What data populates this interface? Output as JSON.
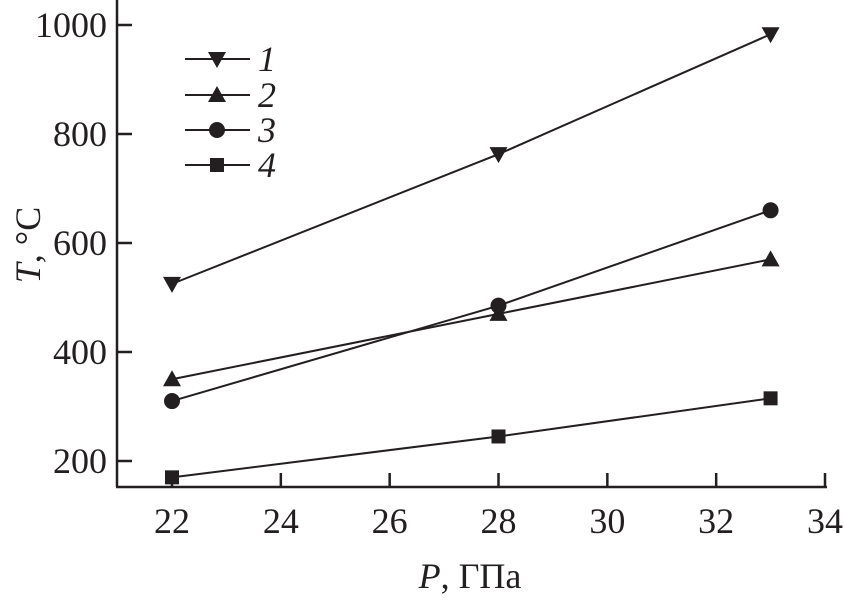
{
  "chart_data": {
    "type": "line",
    "title": "",
    "xlabel_italic": "P",
    "xlabel_rest": ", ГПа",
    "ylabel_italic": "T",
    "ylabel_rest": ", °C",
    "xlim": [
      21,
      34
    ],
    "ylim": [
      152,
      1048
    ],
    "xticks": [
      22,
      24,
      26,
      28,
      30,
      32,
      34
    ],
    "yticks": [
      200,
      400,
      600,
      800,
      1000
    ],
    "grid": false,
    "legend_placement": "top-left",
    "x": [
      22,
      28,
      33
    ],
    "series": [
      {
        "name": "1",
        "marker": "triangle-down",
        "values": [
          525,
          763,
          983
        ]
      },
      {
        "name": "2",
        "marker": "triangle-up",
        "values": [
          350,
          470,
          570
        ]
      },
      {
        "name": "3",
        "marker": "circle",
        "values": [
          310,
          485,
          660
        ]
      },
      {
        "name": "4",
        "marker": "square",
        "values": [
          170,
          245,
          315
        ]
      }
    ],
    "color": "#231f20"
  }
}
